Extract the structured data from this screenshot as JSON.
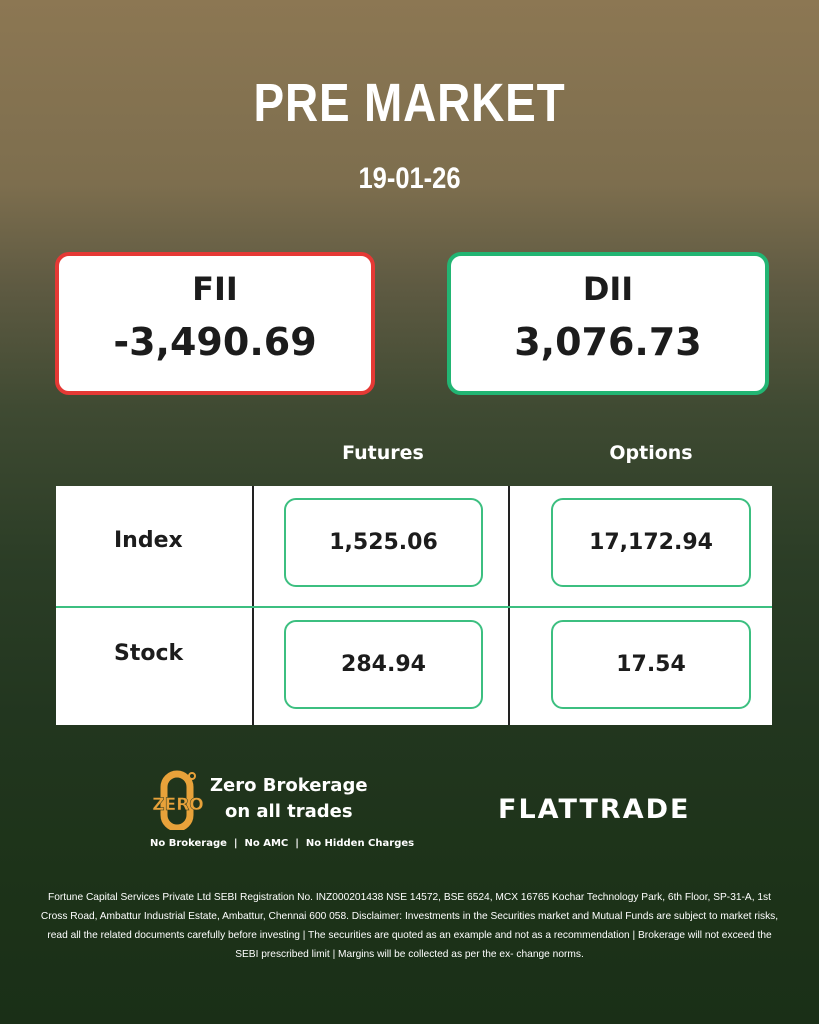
{
  "header": {
    "title": "PRE MARKET",
    "date": "19-01-26"
  },
  "fii": {
    "label": "FII",
    "value": "-3,490.69",
    "border_color": "#e53935"
  },
  "dii": {
    "label": "DII",
    "value": "3,076.73",
    "border_color": "#22b573"
  },
  "table": {
    "columns": [
      "Futures",
      "Options"
    ],
    "rows": [
      {
        "label": "Index",
        "futures": "1,525.06",
        "options": "17,172.94"
      },
      {
        "label": "Stock",
        "futures": "284.94",
        "options": "17.54"
      }
    ]
  },
  "promo": {
    "badge": "ZERO",
    "line1": "Zero Brokerage",
    "line2": "on all trades",
    "tagline": "No Brokerage  |  No AMC  |  No Hidden Charges",
    "accent": "#e8a23a"
  },
  "brand": {
    "logo": "FLATTRADE"
  },
  "disclaimer": "Fortune Capital Services Private Ltd SEBI Registration No. INZ000201438 NSE 14572, BSE 6524, MCX 16765 Kochar Technology Park, 6th Floor, SP-31-A, 1st Cross Road, Ambattur Industrial Estate, Ambattur, Chennai 600 058. Disclaimer: Investments in the Securities market and Mutual Funds are subject to market risks, read all the related documents carefully before investing | The securities are quoted as an example and not as a recommendation | Brokerage will not exceed the SEBI prescribed limit | Margins will be collected as per the ex- change norms."
}
